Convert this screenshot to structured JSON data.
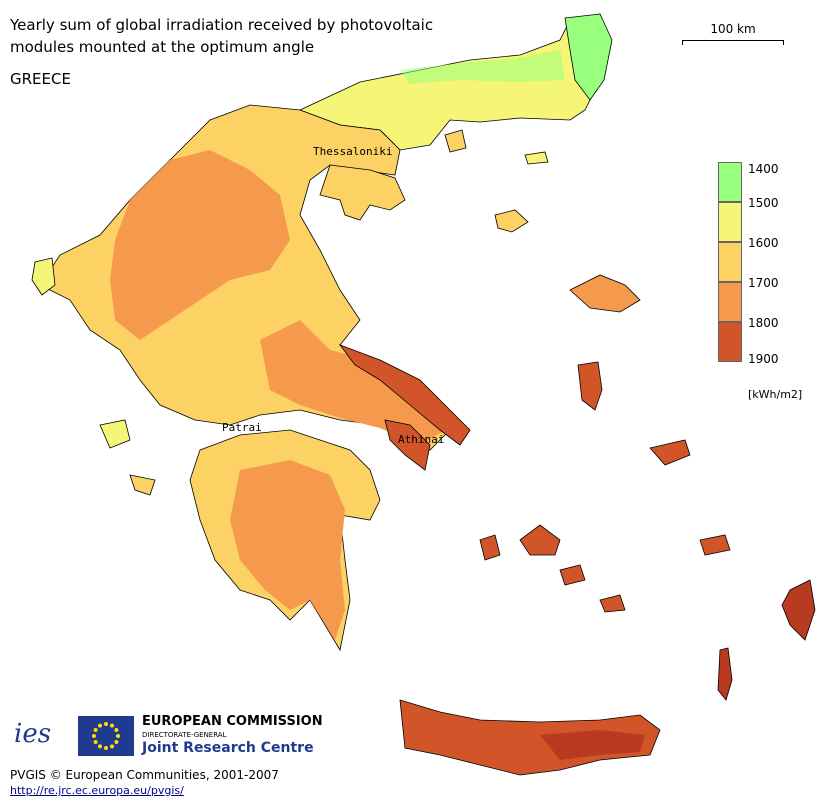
{
  "title_line1": "Yearly sum of global irradiation received by photovoltaic",
  "title_line2": "modules mounted at the optimum angle",
  "country": "GREECE",
  "scale": {
    "label": "100 km"
  },
  "legend": {
    "ticks": [
      "1400",
      "1500",
      "1600",
      "1700",
      "1800",
      "1900"
    ],
    "colors": [
      "#99ff7f",
      "#f5f577",
      "#fcd265",
      "#f59a4d",
      "#d2552a"
    ],
    "unit": "[kWh/m2]"
  },
  "cities": {
    "thessaloniki": "Thessaloniki",
    "patra": "Patrai",
    "athina": "Athinai"
  },
  "logos": {
    "ies_text": "ies",
    "ec_line1": "EUROPEAN COMMISSION",
    "ec_line2": "DIRECTORATE-GENERAL",
    "ec_line3": "Joint Research Centre"
  },
  "footer": {
    "copyright": "PVGIS © European Communities, 2001-2007",
    "url": "http://re.jrc.ec.europa.eu/pvgis/"
  },
  "colors": {
    "green": "#99ff7f",
    "yellow": "#f5f577",
    "light_orange": "#fcd265",
    "orange": "#f59a4d",
    "dark_orange": "#d2552a",
    "red": "#b83a20"
  }
}
